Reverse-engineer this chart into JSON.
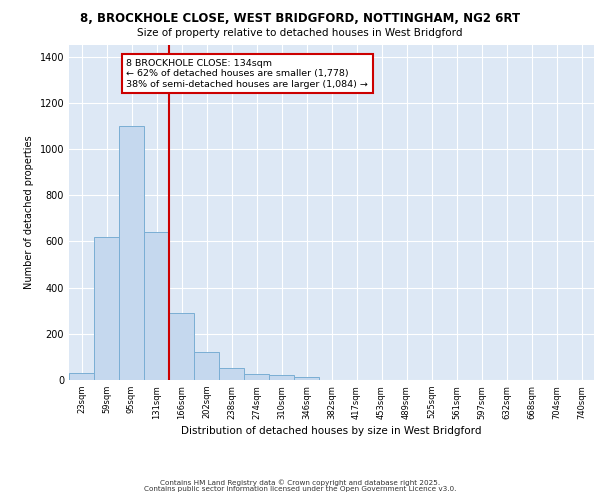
{
  "title_line1": "8, BROCKHOLE CLOSE, WEST BRIDGFORD, NOTTINGHAM, NG2 6RT",
  "title_line2": "Size of property relative to detached houses in West Bridgford",
  "xlabel": "Distribution of detached houses by size in West Bridgford",
  "ylabel": "Number of detached properties",
  "bar_labels": [
    "23sqm",
    "59sqm",
    "95sqm",
    "131sqm",
    "166sqm",
    "202sqm",
    "238sqm",
    "274sqm",
    "310sqm",
    "346sqm",
    "382sqm",
    "417sqm",
    "453sqm",
    "489sqm",
    "525sqm",
    "561sqm",
    "597sqm",
    "632sqm",
    "668sqm",
    "704sqm",
    "740sqm"
  ],
  "bar_values": [
    30,
    620,
    1100,
    640,
    290,
    120,
    50,
    25,
    20,
    15,
    0,
    0,
    0,
    0,
    0,
    0,
    0,
    0,
    0,
    0,
    0
  ],
  "bar_color": "#c5d8ee",
  "bar_edge_color": "#7aaed4",
  "vline_x": 3.5,
  "vline_color": "#cc0000",
  "annotation_text": "8 BROCKHOLE CLOSE: 134sqm\n← 62% of detached houses are smaller (1,778)\n38% of semi-detached houses are larger (1,084) →",
  "annotation_box_color": "#ffffff",
  "annotation_box_edge": "#cc0000",
  "background_color": "#dde8f5",
  "grid_color": "#ffffff",
  "ylim": [
    0,
    1450
  ],
  "yticks": [
    0,
    200,
    400,
    600,
    800,
    1000,
    1200,
    1400
  ],
  "footer_line1": "Contains HM Land Registry data © Crown copyright and database right 2025.",
  "footer_line2": "Contains public sector information licensed under the Open Government Licence v3.0."
}
